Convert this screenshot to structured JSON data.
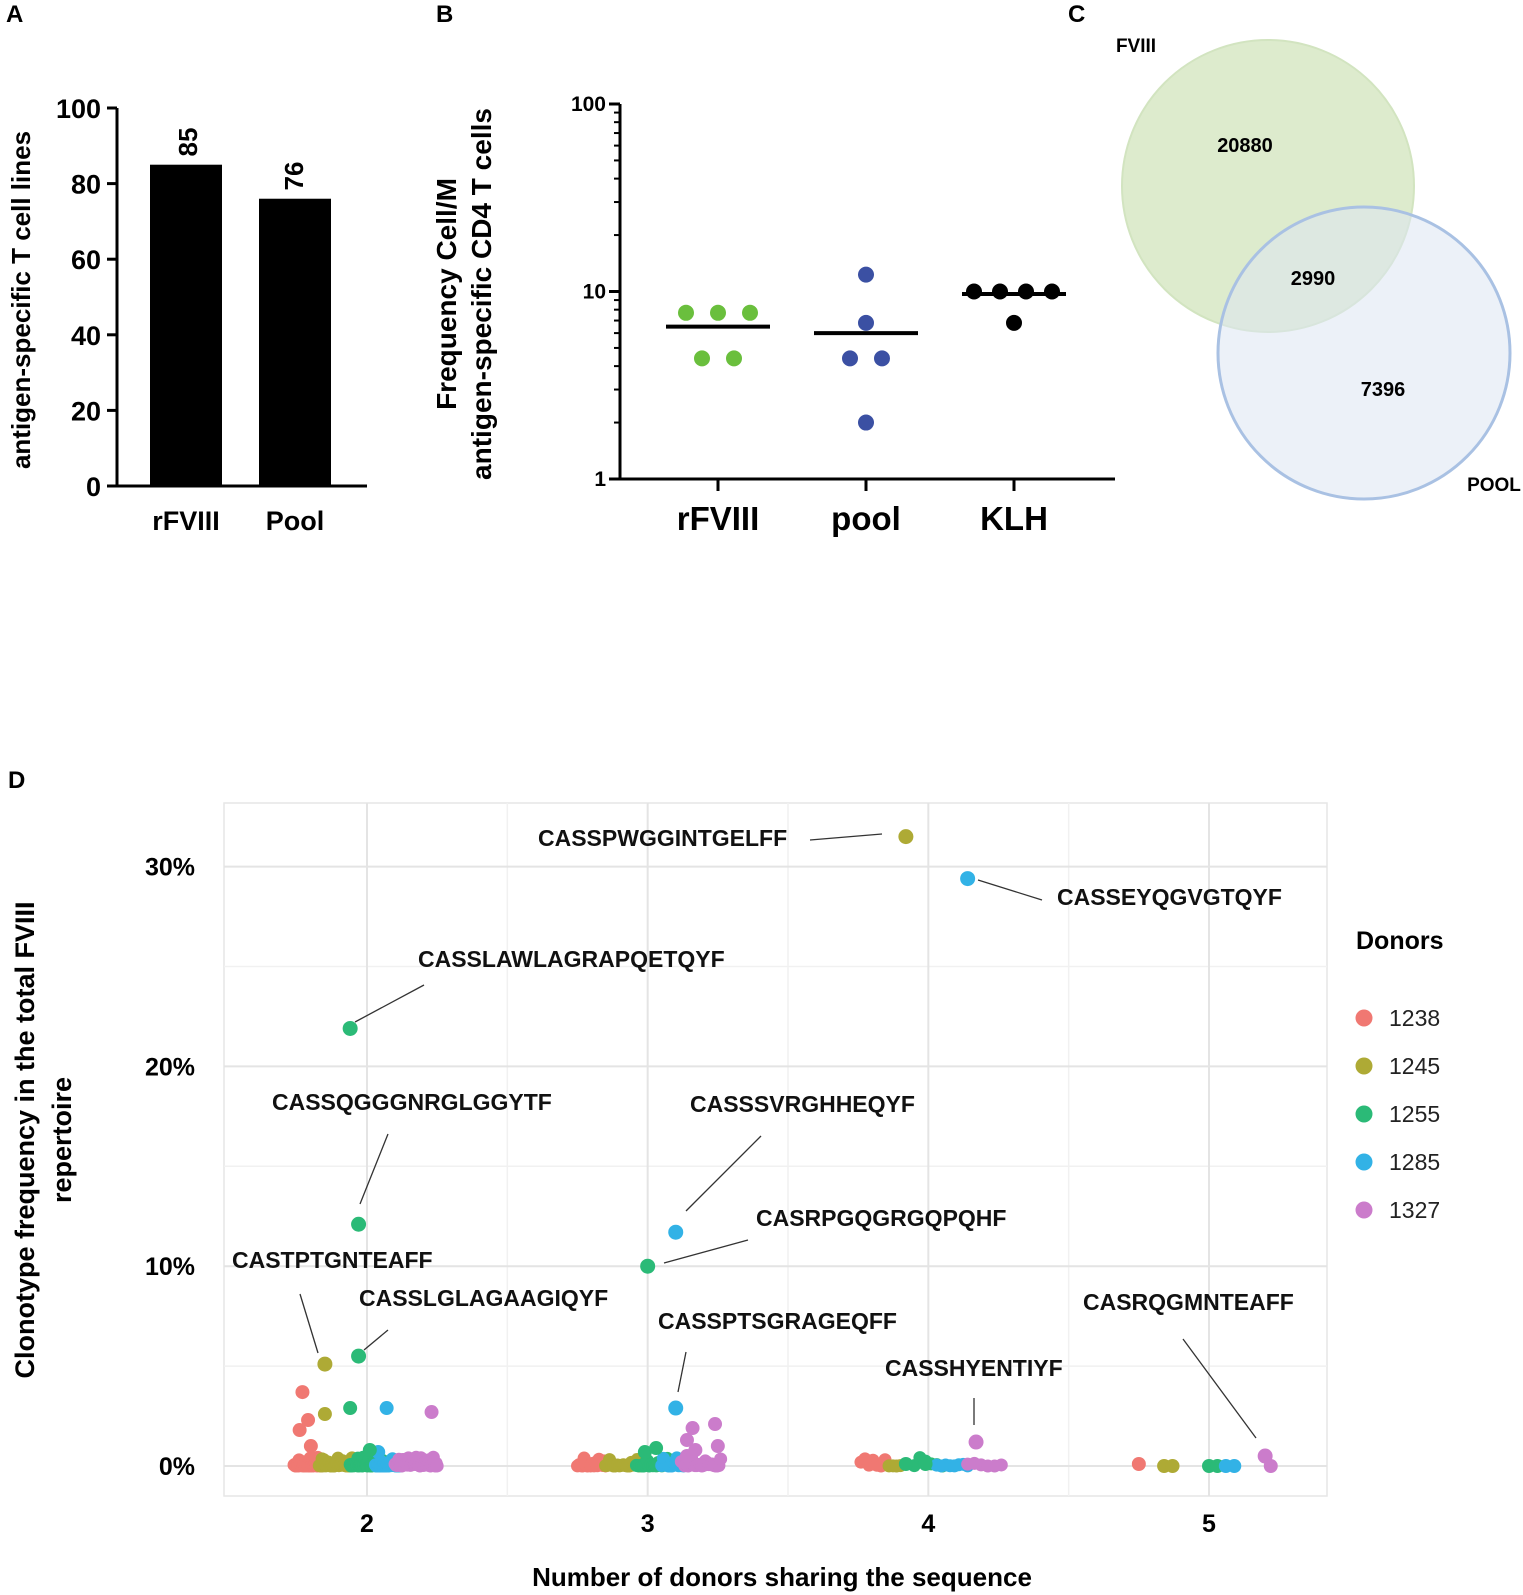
{
  "panels": [
    "A",
    "B",
    "C",
    "D"
  ],
  "chart_data": [
    {
      "panel": "A",
      "type": "bar",
      "title": "",
      "ylabel": "antigen-specific T cell lines",
      "xlabel": "",
      "ylim": [
        0,
        100
      ],
      "yticks": [
        "0",
        "20",
        "40",
        "60",
        "80",
        "100"
      ],
      "categories": [
        "rFVIII",
        "Pool"
      ],
      "values": [
        85,
        76
      ],
      "value_labels": [
        "85",
        "76"
      ],
      "bar_color": "#000000"
    },
    {
      "panel": "B",
      "type": "scatter",
      "scale": "log",
      "ylabel_line1": "Frequency Cell/M",
      "ylabel_line2": "antigen-specific CD4 T cells",
      "ylim": [
        1,
        100
      ],
      "yticks": [
        "1",
        "10",
        "100"
      ],
      "categories": [
        "rFVIII",
        "pool",
        "KLH"
      ],
      "groups": [
        {
          "name": "rFVIII",
          "color": "#6abf3d",
          "mean": 6.5,
          "points": [
            7.7,
            7.7,
            7.7,
            4.4,
            4.4
          ]
        },
        {
          "name": "pool",
          "color": "#3b50a3",
          "mean": 6.0,
          "points": [
            12.3,
            6.8,
            4.4,
            4.4,
            2.0
          ]
        },
        {
          "name": "KLH",
          "color": "#000000",
          "mean": 9.7,
          "points": [
            10.0,
            10.0,
            10.0,
            10.0,
            6.8
          ]
        }
      ]
    },
    {
      "panel": "C",
      "type": "venn",
      "sets": [
        {
          "name": "FVIII",
          "only": "20880",
          "color": "#d7e8c7"
        },
        {
          "name": "POOL",
          "only": "7396",
          "color": "#dde6f2"
        }
      ],
      "intersection": "2990"
    },
    {
      "panel": "D",
      "type": "scatter",
      "xlabel": "Number of donors sharing the sequence",
      "ylabel_line1": "Clonotype frequency in the total FVIII",
      "ylabel_line2": "repertoire",
      "xticks": [
        "2",
        "3",
        "4",
        "5"
      ],
      "yticks": [
        "0%",
        "10%",
        "20%",
        "30%"
      ],
      "ylim": [
        0,
        33
      ],
      "legend_title": "Donors",
      "legend": [
        {
          "name": "1238",
          "color": "#f07872"
        },
        {
          "name": "1245",
          "color": "#aeaa35"
        },
        {
          "name": "1255",
          "color": "#2bba77"
        },
        {
          "name": "1285",
          "color": "#32b2e6"
        },
        {
          "name": "1327",
          "color": "#cb7ccb"
        }
      ],
      "labeled_points": [
        {
          "label": "CASSPWGGINTGELFF",
          "x": 3.92,
          "y": 31.5,
          "donor": "1245"
        },
        {
          "label": "CASSEYQGVGTQYF",
          "x": 4.14,
          "y": 29.4,
          "donor": "1285"
        },
        {
          "label": "CASSLAWLAGRAPQETQYF",
          "x": 1.94,
          "y": 21.9,
          "donor": "1255"
        },
        {
          "label": "CASSQGGGNRGLGGYTF",
          "x": 1.97,
          "y": 12.1,
          "donor": "1255"
        },
        {
          "label": "CASSSVRGHHEQYF",
          "x": 3.1,
          "y": 11.7,
          "donor": "1285"
        },
        {
          "label": "CASRPGQGRGQPQHF",
          "x": 3.0,
          "y": 10.0,
          "donor": "1255"
        },
        {
          "label": "CASTPTGNTEAFF",
          "x": 1.85,
          "y": 5.1,
          "donor": "1245"
        },
        {
          "label": "CASSLGLAGAAGIQYF",
          "x": 1.97,
          "y": 5.5,
          "donor": "1255"
        },
        {
          "label": "CASSPTSGRAGEQFF",
          "x": 3.1,
          "y": 2.9,
          "donor": "1285"
        },
        {
          "label": "CASSHYENTIYF",
          "x": 4.17,
          "y": 1.2,
          "donor": "1327"
        },
        {
          "label": "CASRQGMNTEAFF",
          "x": 5.2,
          "y": 0.5,
          "donor": "1327"
        }
      ],
      "other_points": [
        {
          "x": 1.77,
          "y": 3.7,
          "donor": "1238"
        },
        {
          "x": 1.79,
          "y": 2.3,
          "donor": "1238"
        },
        {
          "x": 1.76,
          "y": 1.8,
          "donor": "1238"
        },
        {
          "x": 1.8,
          "y": 1.0,
          "donor": "1238"
        },
        {
          "x": 1.85,
          "y": 2.6,
          "donor": "1245"
        },
        {
          "x": 1.94,
          "y": 2.9,
          "donor": "1255"
        },
        {
          "x": 2.07,
          "y": 2.9,
          "donor": "1285"
        },
        {
          "x": 2.04,
          "y": 0.7,
          "donor": "1285"
        },
        {
          "x": 2.23,
          "y": 2.7,
          "donor": "1327"
        },
        {
          "x": 2.01,
          "y": 0.8,
          "donor": "1255"
        },
        {
          "x": 2.99,
          "y": 0.7,
          "donor": "1255"
        },
        {
          "x": 3.03,
          "y": 0.9,
          "donor": "1255"
        },
        {
          "x": 3.16,
          "y": 1.9,
          "donor": "1327"
        },
        {
          "x": 3.24,
          "y": 2.1,
          "donor": "1327"
        },
        {
          "x": 3.25,
          "y": 1.0,
          "donor": "1327"
        },
        {
          "x": 3.14,
          "y": 1.3,
          "donor": "1327"
        },
        {
          "x": 3.17,
          "y": 0.8,
          "donor": "1327"
        },
        {
          "x": 3.14,
          "y": 0.5,
          "donor": "1327"
        },
        {
          "x": 3.92,
          "y": 0.1,
          "donor": "1255"
        },
        {
          "x": 3.99,
          "y": 0.1,
          "donor": "1255"
        },
        {
          "x": 4.75,
          "y": 0.1,
          "donor": "1238"
        },
        {
          "x": 4.84,
          "y": 0.0,
          "donor": "1245"
        },
        {
          "x": 4.87,
          "y": 0.0,
          "donor": "1245"
        },
        {
          "x": 5.0,
          "y": 0.0,
          "donor": "1255"
        },
        {
          "x": 5.03,
          "y": 0.0,
          "donor": "1255"
        },
        {
          "x": 5.06,
          "y": 0.0,
          "donor": "1285"
        },
        {
          "x": 5.09,
          "y": 0.0,
          "donor": "1285"
        },
        {
          "x": 5.22,
          "y": 0.0,
          "donor": "1327"
        }
      ],
      "baseline_clusters": [
        {
          "group": 2,
          "donor": "1238",
          "x_range": [
            1.74,
            1.84
          ],
          "count": 40
        },
        {
          "group": 2,
          "donor": "1245",
          "x_range": [
            1.83,
            1.96
          ],
          "count": 40
        },
        {
          "group": 2,
          "donor": "1255",
          "x_range": [
            1.94,
            2.06
          ],
          "count": 40
        },
        {
          "group": 2,
          "donor": "1285",
          "x_range": [
            2.03,
            2.12
          ],
          "count": 35
        },
        {
          "group": 2,
          "donor": "1327",
          "x_range": [
            2.1,
            2.25
          ],
          "count": 45
        },
        {
          "group": 3,
          "donor": "1238",
          "x_range": [
            2.75,
            2.85
          ],
          "count": 18
        },
        {
          "group": 3,
          "donor": "1245",
          "x_range": [
            2.85,
            2.97
          ],
          "count": 18
        },
        {
          "group": 3,
          "donor": "1255",
          "x_range": [
            2.96,
            3.07
          ],
          "count": 18
        },
        {
          "group": 3,
          "donor": "1285",
          "x_range": [
            3.05,
            3.14
          ],
          "count": 16
        },
        {
          "group": 3,
          "donor": "1327",
          "x_range": [
            3.12,
            3.26
          ],
          "count": 24
        },
        {
          "group": 4,
          "donor": "1238",
          "x_range": [
            3.76,
            3.86
          ],
          "count": 8
        },
        {
          "group": 4,
          "donor": "1245",
          "x_range": [
            3.86,
            3.9
          ],
          "count": 4
        },
        {
          "group": 4,
          "donor": "1255",
          "x_range": [
            3.95,
            4.05
          ],
          "count": 6
        },
        {
          "group": 4,
          "donor": "1285",
          "x_range": [
            4.03,
            4.14
          ],
          "count": 8
        },
        {
          "group": 4,
          "donor": "1327",
          "x_range": [
            4.14,
            4.26
          ],
          "count": 6
        }
      ]
    }
  ]
}
